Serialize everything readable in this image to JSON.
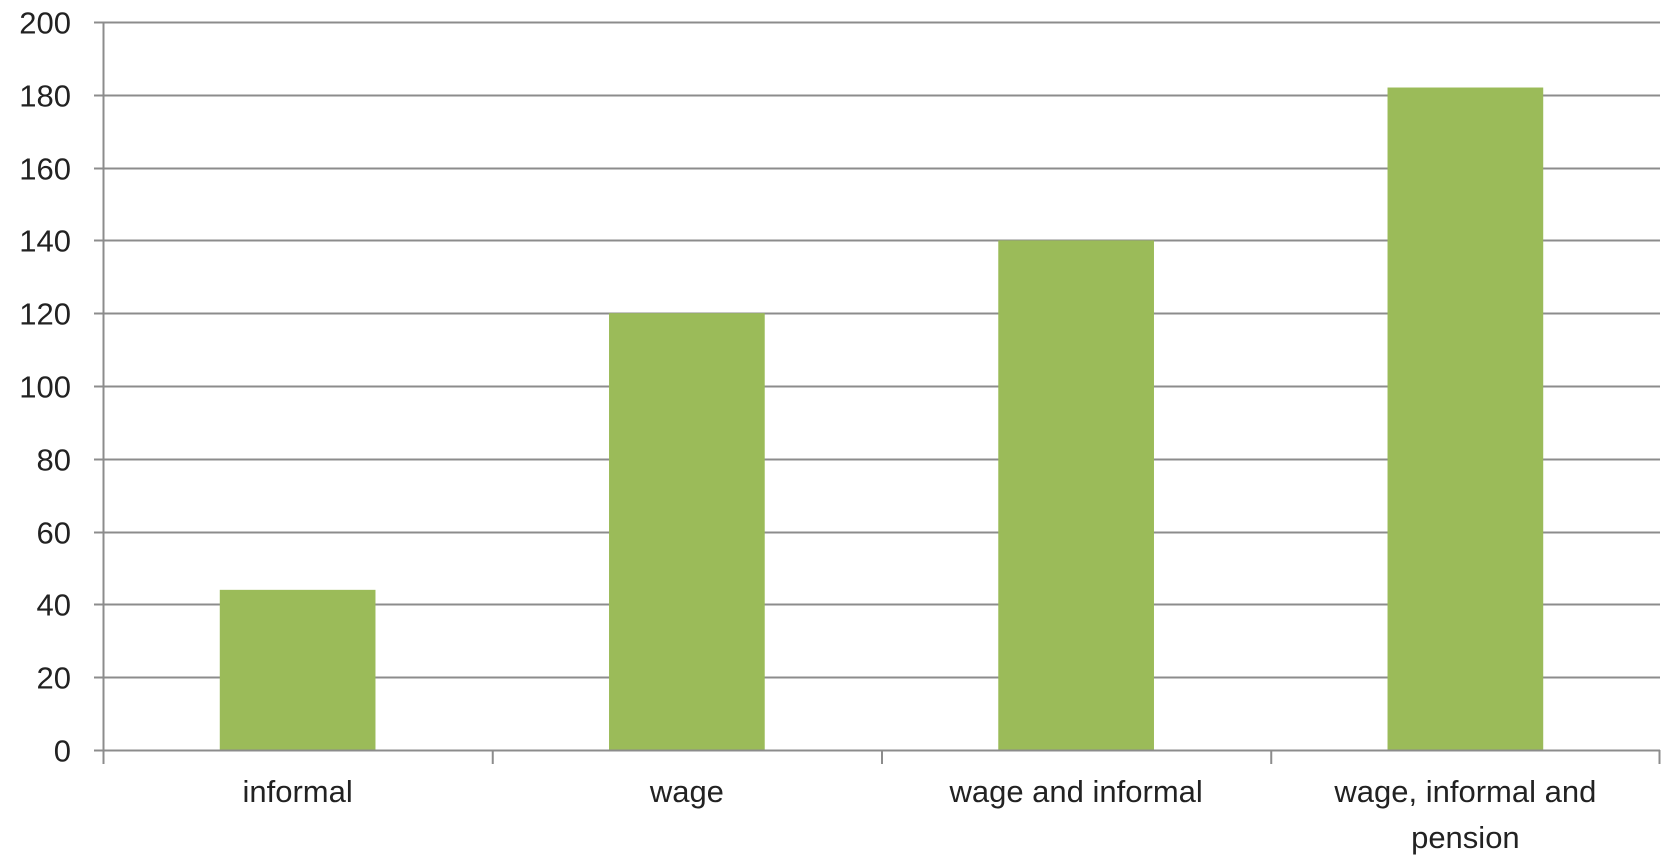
{
  "chart_data": {
    "type": "bar",
    "title": "",
    "xlabel": "",
    "ylabel": "",
    "categories": [
      [
        "informal"
      ],
      [
        "wage"
      ],
      [
        "wage and informal"
      ],
      [
        "wage, informal and",
        "pension"
      ]
    ],
    "values": [
      44,
      120,
      140,
      182
    ],
    "ylim": [
      0,
      200
    ],
    "yticks": [
      0,
      20,
      40,
      60,
      80,
      100,
      120,
      140,
      160,
      180,
      200
    ],
    "grid": true,
    "legend": "none",
    "colors": {
      "bar": "#9bbb59",
      "grid": "#8c8c8c",
      "axis": "#8c8c8c",
      "text": "#222222"
    }
  }
}
